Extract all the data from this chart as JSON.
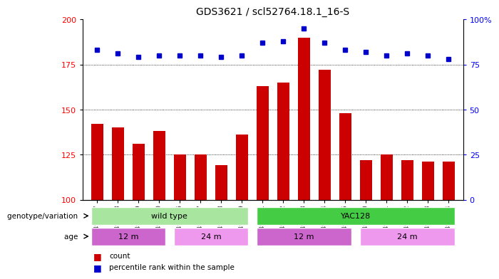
{
  "title": "GDS3621 / scl52764.18.1_16-S",
  "samples": [
    "GSM491327",
    "GSM491328",
    "GSM491329",
    "GSM491330",
    "GSM491336",
    "GSM491337",
    "GSM491338",
    "GSM491339",
    "GSM491331",
    "GSM491332",
    "GSM491333",
    "GSM491334",
    "GSM491335",
    "GSM491340",
    "GSM491341",
    "GSM491342",
    "GSM491343",
    "GSM491344"
  ],
  "counts": [
    142,
    140,
    131,
    138,
    125,
    125,
    119,
    136,
    163,
    165,
    190,
    172,
    148,
    122,
    125,
    122,
    121,
    121
  ],
  "percentile_ranks": [
    83,
    81,
    79,
    80,
    80,
    80,
    79,
    80,
    87,
    88,
    95,
    87,
    83,
    82,
    80,
    81,
    80,
    78
  ],
  "bar_color": "#cc0000",
  "dot_color": "#0000cc",
  "ylim_left": [
    100,
    200
  ],
  "ylim_right": [
    0,
    100
  ],
  "yticks_left": [
    100,
    125,
    150,
    175,
    200
  ],
  "yticks_right": [
    0,
    25,
    50,
    75,
    100
  ],
  "ytick_labels_right": [
    "0",
    "25",
    "50",
    "75",
    "100%"
  ],
  "genotype_groups": [
    {
      "label": "wild type",
      "start": 0,
      "end": 7,
      "color": "#a8e6a0"
    },
    {
      "label": "YAC128",
      "start": 8,
      "end": 17,
      "color": "#44cc44"
    }
  ],
  "age_groups": [
    {
      "label": "12 m",
      "start": 0,
      "end": 3,
      "color": "#cc66cc"
    },
    {
      "label": "24 m",
      "start": 4,
      "end": 7,
      "color": "#ee99ee"
    },
    {
      "label": "12 m",
      "start": 8,
      "end": 12,
      "color": "#cc66cc"
    },
    {
      "label": "24 m",
      "start": 13,
      "end": 17,
      "color": "#ee99ee"
    }
  ],
  "legend_items": [
    {
      "label": "count",
      "color": "#cc0000"
    },
    {
      "label": "percentile rank within the sample",
      "color": "#0000cc"
    }
  ],
  "geno_label": "genotype/variation",
  "age_label": "age",
  "grid_lines": [
    125,
    150,
    175
  ],
  "bar_width": 0.6
}
